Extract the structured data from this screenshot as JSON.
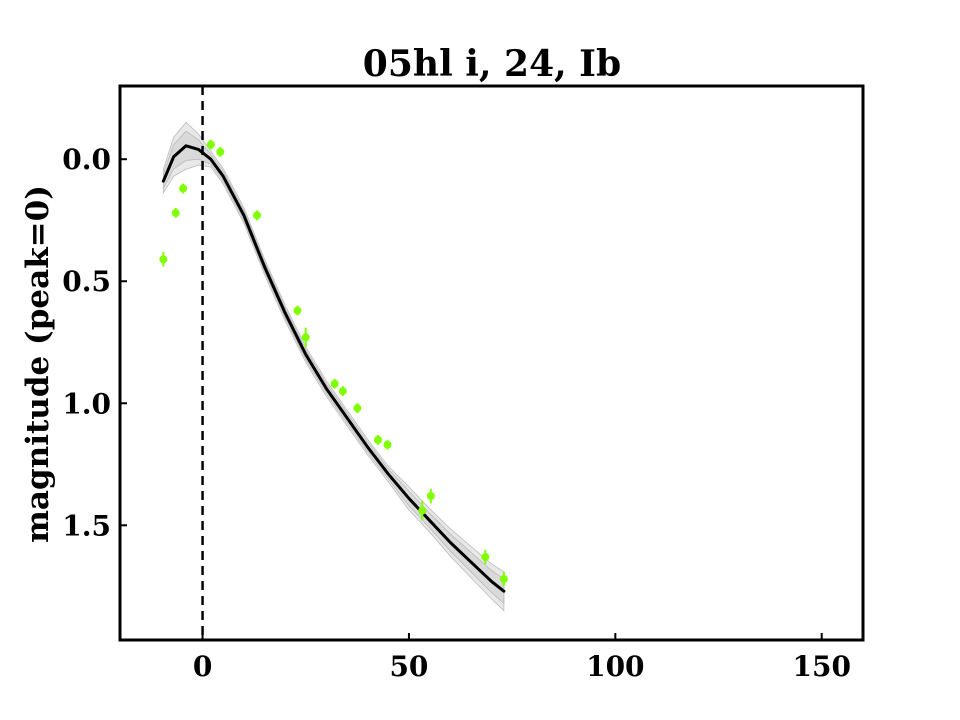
{
  "chart_data": {
    "type": "scatter",
    "title": "05hl i, 24, Ib",
    "xlabel": "",
    "ylabel": "magnitude (peak=0)",
    "xlim": [
      -20,
      160
    ],
    "ylim": [
      1.97,
      -0.3
    ],
    "y_inverted": true,
    "x_ticks": [
      0,
      50,
      100,
      150
    ],
    "x_tick_labels": [
      "0",
      "50",
      "100",
      "150"
    ],
    "y_ticks": [
      0.0,
      0.5,
      1.0,
      1.5
    ],
    "y_tick_labels": [
      "0.0",
      "0.5",
      "1.0",
      "1.5"
    ],
    "grid": false,
    "reference_line": {
      "x": 0,
      "style": "dashed"
    },
    "series": [
      {
        "kind": "points",
        "color": "#7fff00",
        "points": [
          {
            "x": -9.5,
            "y": 0.41,
            "err": 0.03
          },
          {
            "x": -6.5,
            "y": 0.22,
            "err": 0.02
          },
          {
            "x": -4.7,
            "y": 0.12,
            "err": 0.02
          },
          {
            "x": 2.0,
            "y": -0.06,
            "err": 0.02
          },
          {
            "x": 4.3,
            "y": -0.03,
            "err": 0.02
          },
          {
            "x": 13.2,
            "y": 0.23,
            "err": 0.02
          },
          {
            "x": 23.0,
            "y": 0.62,
            "err": 0.02
          },
          {
            "x": 25.0,
            "y": 0.73,
            "err": 0.04
          },
          {
            "x": 32.0,
            "y": 0.92,
            "err": 0.02
          },
          {
            "x": 34.0,
            "y": 0.95,
            "err": 0.02
          },
          {
            "x": 37.5,
            "y": 1.02,
            "err": 0.02
          },
          {
            "x": 42.5,
            "y": 1.15,
            "err": 0.02
          },
          {
            "x": 44.8,
            "y": 1.17,
            "err": 0.02
          },
          {
            "x": 53.2,
            "y": 1.44,
            "err": 0.04
          },
          {
            "x": 55.3,
            "y": 1.38,
            "err": 0.03
          },
          {
            "x": 68.5,
            "y": 1.63,
            "err": 0.03
          },
          {
            "x": 73.0,
            "y": 1.72,
            "err": 0.03
          }
        ]
      },
      {
        "kind": "fit",
        "color": "#000000",
        "band_color": "#cccccc",
        "points": [
          {
            "x": -9.5,
            "y": 0.09,
            "band": 0.03
          },
          {
            "x": -7,
            "y": -0.01,
            "band": 0.05
          },
          {
            "x": -4,
            "y": -0.055,
            "band": 0.06
          },
          {
            "x": -1,
            "y": -0.04,
            "band": 0.04
          },
          {
            "x": 2,
            "y": 0.0,
            "band": 0.02
          },
          {
            "x": 5,
            "y": 0.07,
            "band": 0.02
          },
          {
            "x": 10,
            "y": 0.23,
            "band": 0.02
          },
          {
            "x": 15,
            "y": 0.44,
            "band": 0.02
          },
          {
            "x": 20,
            "y": 0.63,
            "band": 0.02
          },
          {
            "x": 25,
            "y": 0.8,
            "band": 0.02
          },
          {
            "x": 30,
            "y": 0.94,
            "band": 0.02
          },
          {
            "x": 35,
            "y": 1.06,
            "band": 0.02
          },
          {
            "x": 40,
            "y": 1.18,
            "band": 0.02
          },
          {
            "x": 45,
            "y": 1.29,
            "band": 0.02
          },
          {
            "x": 50,
            "y": 1.39,
            "band": 0.03
          },
          {
            "x": 55,
            "y": 1.48,
            "band": 0.03
          },
          {
            "x": 60,
            "y": 1.57,
            "band": 0.035
          },
          {
            "x": 65,
            "y": 1.65,
            "band": 0.04
          },
          {
            "x": 70,
            "y": 1.73,
            "band": 0.045
          },
          {
            "x": 73,
            "y": 1.77,
            "band": 0.05
          }
        ]
      }
    ]
  }
}
